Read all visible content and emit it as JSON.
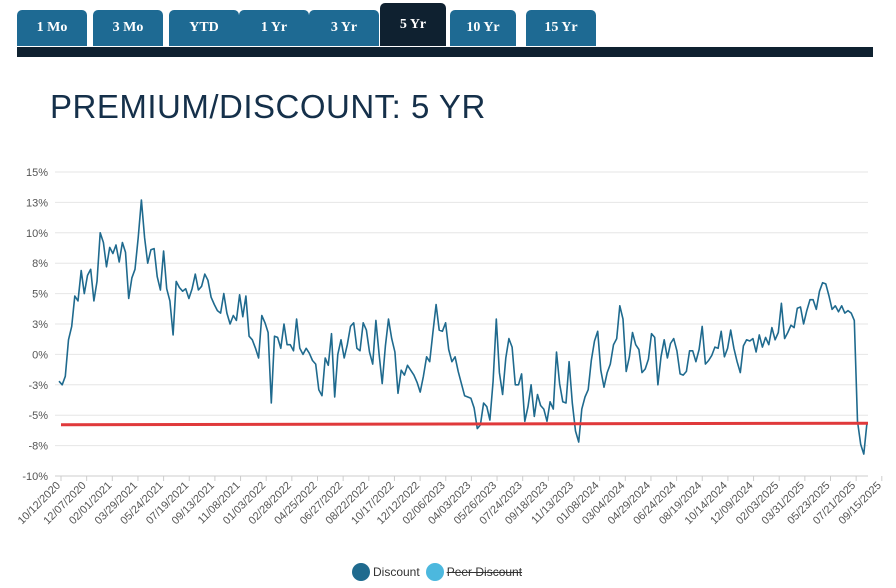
{
  "tabs": [
    {
      "label": "1 Mo",
      "active": false
    },
    {
      "label": "3 Mo",
      "active": false
    },
    {
      "label": "YTD",
      "active": false
    },
    {
      "label": "1 Yr",
      "active": false
    },
    {
      "label": "3 Yr",
      "active": false
    },
    {
      "label": "5 Yr",
      "active": true
    },
    {
      "label": "10 Yr",
      "active": false
    },
    {
      "label": "15 Yr",
      "active": false
    }
  ],
  "page_title": "PREMIUM/DISCOUNT: 5 YR",
  "legend": {
    "discount": {
      "label": "Discount",
      "color": "#1f6a8e"
    },
    "peer_discount": {
      "label": "Peer Discount",
      "color": "#4cb8de",
      "hidden": true
    }
  },
  "colors": {
    "tab": "#1e6a93",
    "tab_active": "#0f2130",
    "title": "#15304a",
    "reference_line": "#e0393b"
  },
  "chart_data": {
    "type": "line",
    "title": "",
    "xlabel": "",
    "ylabel": "",
    "y_ticks": [
      "15%",
      "13%",
      "10%",
      "8%",
      "5%",
      "3%",
      "0%",
      "-3%",
      "-5%",
      "-8%",
      "-10%"
    ],
    "ylim": [
      -10,
      15
    ],
    "x_ticks": [
      "10/12/2020",
      "12/07/2020",
      "02/01/2021",
      "03/29/2021",
      "05/24/2021",
      "07/19/2021",
      "09/13/2021",
      "11/08/2021",
      "01/03/2022",
      "02/28/2022",
      "04/25/2022",
      "06/27/2022",
      "08/22/2022",
      "10/17/2022",
      "12/12/2022",
      "02/06/2023",
      "04/03/2023",
      "05/26/2023",
      "07/24/2023",
      "09/18/2023",
      "11/13/2023",
      "01/08/2024",
      "03/04/2024",
      "04/29/2024",
      "06/24/2024",
      "08/19/2024",
      "10/14/2024",
      "12/09/2024",
      "02/03/2025",
      "03/31/2025",
      "05/23/2025",
      "07/21/2025",
      "09/15/2025"
    ],
    "reference_line": {
      "value": -5.7
    },
    "series": [
      {
        "name": "Discount",
        "x_start": "10/12/2020",
        "interval": "weekly",
        "values": [
          -2.2,
          -2.5,
          -1.8,
          1.2,
          2.3,
          4.8,
          4.4,
          6.9,
          5.0,
          6.5,
          7.0,
          4.4,
          6.0,
          10.0,
          9.2,
          7.2,
          8.8,
          8.3,
          9.0,
          7.6,
          9.2,
          8.4,
          4.6,
          6.3,
          7.0,
          9.6,
          12.7,
          9.6,
          7.5,
          8.6,
          8.7,
          6.4,
          5.3,
          8.5,
          5.4,
          4.4,
          1.6,
          6.0,
          5.5,
          5.2,
          5.4,
          4.6,
          5.4,
          6.6,
          5.3,
          5.6,
          6.6,
          6.1,
          4.7,
          4.1,
          3.6,
          3.4,
          5.0,
          3.4,
          2.5,
          3.2,
          2.8,
          4.9,
          3.1,
          4.8,
          1.5,
          1.2,
          0.5,
          -0.3,
          3.2,
          2.6,
          1.8,
          -4.0,
          1.5,
          1.4,
          0.5,
          2.5,
          0.8,
          0.8,
          0.3,
          2.9,
          0.5,
          0.0,
          0.5,
          0.1,
          -0.5,
          -0.8,
          -2.9,
          -3.4,
          -0.3,
          -0.9,
          1.7,
          -3.5,
          0.0,
          1.2,
          -0.3,
          0.8,
          2.3,
          2.6,
          0.5,
          0.3,
          2.6,
          2.0,
          0.2,
          -0.8,
          2.8,
          0.1,
          -2.4,
          0.7,
          2.9,
          1.3,
          0.2,
          -3.2,
          -1.3,
          -1.7,
          -0.9,
          -1.3,
          -1.7,
          -2.3,
          -3.1,
          -1.8,
          -0.2,
          -0.6,
          1.8,
          4.1,
          2.0,
          1.9,
          2.6,
          0.4,
          -0.6,
          -0.2,
          -1.4,
          -2.4,
          -3.4,
          -3.5,
          -3.6,
          -4.4,
          -6.1,
          -5.8,
          -4.0,
          -4.3,
          -5.4,
          -2.2,
          2.9,
          -1.5,
          -3.3,
          -0.3,
          1.3,
          0.6,
          -2.5,
          -2.5,
          -1.6,
          -5.5,
          -4.3,
          -2.5,
          -5.1,
          -3.3,
          -4.2,
          -4.5,
          -5.5,
          -3.9,
          -4.5,
          0.2,
          -2.4,
          -3.9,
          -4.0,
          -0.6,
          -4.0,
          -6.3,
          -7.2,
          -4.5,
          -3.5,
          -2.9,
          -0.5,
          1.1,
          1.9,
          -1.3,
          -2.7,
          -1.5,
          -0.8,
          0.8,
          1.3,
          4.0,
          2.9,
          -1.4,
          -0.2,
          1.8,
          0.8,
          0.4,
          -1.5,
          -1.2,
          -0.4,
          1.7,
          1.4,
          -2.5,
          -0.2,
          1.2,
          -0.3,
          0.9,
          1.3,
          0.3,
          -1.6,
          -1.7,
          -1.4,
          0.3,
          0.3,
          -0.6,
          0.4,
          2.3,
          -0.8,
          -0.5,
          -0.1,
          0.6,
          0.5,
          1.9,
          -0.2,
          0.5,
          2.0,
          0.5,
          -0.6,
          -1.5,
          0.7,
          1.2,
          1.1,
          1.3,
          0.2,
          1.6,
          0.6,
          1.4,
          0.8,
          2.2,
          1.2,
          1.8,
          4.2,
          1.3,
          1.8,
          2.4,
          2.2,
          3.8,
          3.9,
          2.5,
          3.6,
          4.5,
          4.5,
          3.7,
          5.2,
          5.9,
          5.8,
          4.8,
          3.7,
          4.0,
          3.5,
          4.0,
          3.4,
          3.6,
          3.4,
          2.8,
          -5.5,
          -7.4,
          -8.2,
          -5.6
        ]
      },
      {
        "name": "Peer Discount",
        "values": []
      }
    ]
  }
}
